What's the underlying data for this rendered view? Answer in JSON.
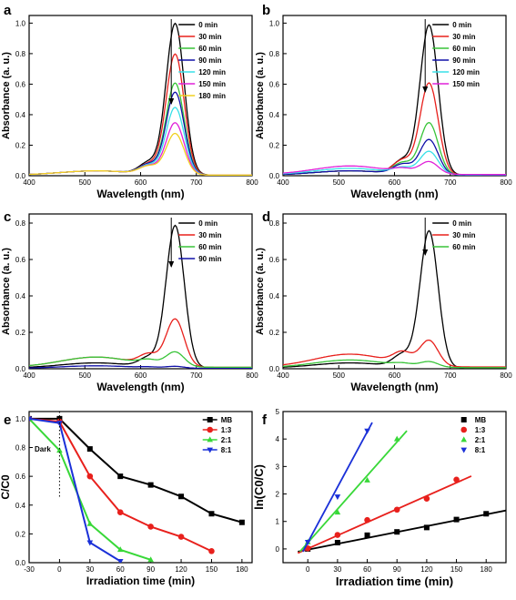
{
  "chart_data": [
    {
      "id": "a",
      "type": "line",
      "panel_label": "a",
      "xlabel": "Wavelength (nm)",
      "ylabel": "Absorbance (a. u.)",
      "xlim": [
        400,
        800
      ],
      "ylim": [
        0,
        1.05
      ],
      "xticks": [
        400,
        500,
        600,
        700,
        800
      ],
      "yticks": [
        0,
        0.2,
        0.4,
        0.6,
        0.8,
        1.0
      ],
      "ytick_labels": [
        "0.0",
        "0.2",
        "0.4",
        "0.6",
        "0.8",
        "1.0"
      ],
      "legend_position": "top-right",
      "arrow": "down",
      "series": [
        {
          "name": "0 min",
          "color": "#000000",
          "peak": 0.99,
          "shoulder": 0.62,
          "baseline": 0.02
        },
        {
          "name": "30 min",
          "color": "#e8201c",
          "peak": 0.79,
          "shoulder": 0.5,
          "baseline": 0.02
        },
        {
          "name": "60 min",
          "color": "#38c438",
          "peak": 0.6,
          "shoulder": 0.39,
          "baseline": 0.02
        },
        {
          "name": "90 min",
          "color": "#1010a8",
          "peak": 0.54,
          "shoulder": 0.36,
          "baseline": 0.02
        },
        {
          "name": "120 min",
          "color": "#38e0e8",
          "peak": 0.44,
          "shoulder": 0.3,
          "baseline": 0.02
        },
        {
          "name": "150 min",
          "color": "#e020d8",
          "peak": 0.34,
          "shoulder": 0.24,
          "baseline": 0.02
        },
        {
          "name": "180 min",
          "color": "#f0d020",
          "peak": 0.27,
          "shoulder": 0.2,
          "baseline": 0.02
        }
      ]
    },
    {
      "id": "b",
      "type": "line",
      "panel_label": "b",
      "xlabel": "Wavelength (nm)",
      "ylabel": "Absorbance (a. u.)",
      "xlim": [
        400,
        800
      ],
      "ylim": [
        0,
        1.05
      ],
      "xticks": [
        400,
        500,
        600,
        700,
        800
      ],
      "yticks": [
        0,
        0.2,
        0.4,
        0.6,
        0.8,
        1.0
      ],
      "ytick_labels": [
        "0.0",
        "0.2",
        "0.4",
        "0.6",
        "0.8",
        "1.0"
      ],
      "legend_position": "top-right",
      "arrow": "down",
      "series": [
        {
          "name": "0 min",
          "color": "#000000",
          "peak": 0.98,
          "shoulder": 0.63,
          "baseline": 0.02
        },
        {
          "name": "30 min",
          "color": "#e8201c",
          "peak": 0.6,
          "shoulder": 0.42,
          "baseline": 0.02
        },
        {
          "name": "60 min",
          "color": "#38c438",
          "peak": 0.34,
          "shoulder": 0.26,
          "baseline": 0.02
        },
        {
          "name": "90 min",
          "color": "#1010a8",
          "peak": 0.23,
          "shoulder": 0.19,
          "baseline": 0.02
        },
        {
          "name": "120 min",
          "color": "#38e0e8",
          "peak": 0.15,
          "shoulder": 0.12,
          "baseline": 0.03
        },
        {
          "name": "150 min",
          "color": "#e020d8",
          "peak": 0.08,
          "shoulder": 0.07,
          "baseline": 0.04
        }
      ]
    },
    {
      "id": "c",
      "type": "line",
      "panel_label": "c",
      "xlabel": "Wavelength (nm)",
      "ylabel": "Absorbance (a. u.)",
      "xlim": [
        400,
        800
      ],
      "ylim": [
        0,
        0.85
      ],
      "xticks": [
        400,
        500,
        600,
        700,
        800
      ],
      "yticks": [
        0,
        0.2,
        0.4,
        0.6,
        0.8
      ],
      "ytick_labels": [
        "0.0",
        "0.2",
        "0.4",
        "0.6",
        "0.8"
      ],
      "legend_position": "top-right",
      "arrow": "down",
      "series": [
        {
          "name": "0 min",
          "color": "#000000",
          "peak": 0.78,
          "shoulder": 0.48,
          "baseline": 0.02
        },
        {
          "name": "30 min",
          "color": "#e8201c",
          "peak": 0.26,
          "shoulder": 0.2,
          "baseline": 0.04
        },
        {
          "name": "60 min",
          "color": "#38c438",
          "peak": 0.08,
          "shoulder": 0.07,
          "baseline": 0.04
        },
        {
          "name": "90 min",
          "color": "#1010a8",
          "peak": 0.01,
          "shoulder": 0.01,
          "baseline": 0.01
        }
      ]
    },
    {
      "id": "d",
      "type": "line",
      "panel_label": "d",
      "xlabel": "Wavelength (nm)",
      "ylabel": "Absorbance (a. u.)",
      "xlim": [
        400,
        800
      ],
      "ylim": [
        0,
        0.85
      ],
      "xticks": [
        400,
        500,
        600,
        700,
        800
      ],
      "yticks": [
        0,
        0.2,
        0.4,
        0.6,
        0.8
      ],
      "ytick_labels": [
        "0.0",
        "0.2",
        "0.4",
        "0.6",
        "0.8"
      ],
      "legend_position": "top-right",
      "arrow": "down",
      "series": [
        {
          "name": "0 min",
          "color": "#000000",
          "peak": 0.75,
          "shoulder": 0.48,
          "baseline": 0.02
        },
        {
          "name": "30 min",
          "color": "#e8201c",
          "peak": 0.14,
          "shoulder": 0.14,
          "baseline": 0.05
        },
        {
          "name": "60 min",
          "color": "#38c438",
          "peak": 0.03,
          "shoulder": 0.03,
          "baseline": 0.03
        }
      ]
    },
    {
      "id": "e",
      "type": "line",
      "panel_label": "e",
      "xlabel": "Irradiation time (min)",
      "ylabel": "C/C0",
      "xlim": [
        -30,
        190
      ],
      "ylim": [
        0,
        1.05
      ],
      "xticks": [
        -30,
        0,
        30,
        60,
        90,
        120,
        150,
        180
      ],
      "yticks": [
        0,
        0.2,
        0.4,
        0.6,
        0.8,
        1.0
      ],
      "ytick_labels": [
        "0.0",
        "0.2",
        "0.4",
        "0.6",
        "0.8",
        "1.0"
      ],
      "legend_position": "top-right",
      "annotation": {
        "text": "Dark",
        "x_line": 0
      },
      "series": [
        {
          "name": "MB",
          "color": "#000000",
          "marker": "square",
          "x": [
            -30,
            0,
            30,
            60,
            90,
            120,
            150,
            180
          ],
          "y": [
            1.0,
            1.0,
            0.79,
            0.6,
            0.54,
            0.46,
            0.34,
            0.28
          ]
        },
        {
          "name": "1:3",
          "color": "#e8201c",
          "marker": "circle",
          "x": [
            -30,
            0,
            30,
            60,
            90,
            120,
            150
          ],
          "y": [
            1.0,
            0.98,
            0.6,
            0.35,
            0.25,
            0.18,
            0.08
          ]
        },
        {
          "name": "2:1",
          "color": "#38d838",
          "marker": "triangle-up",
          "x": [
            -30,
            0,
            30,
            60,
            90
          ],
          "y": [
            1.0,
            0.78,
            0.27,
            0.09,
            0.02
          ]
        },
        {
          "name": "8:1",
          "color": "#1a30d8",
          "marker": "triangle-down",
          "x": [
            -30,
            0,
            30,
            60
          ],
          "y": [
            1.0,
            0.97,
            0.14,
            0.01
          ]
        }
      ]
    },
    {
      "id": "f",
      "type": "scatter",
      "panel_label": "f",
      "xlabel": "Irradiation time (min)",
      "ylabel": "ln(C0/C)",
      "xlim": [
        -25,
        200
      ],
      "ylim": [
        -0.5,
        5
      ],
      "xticks": [
        0,
        30,
        60,
        90,
        120,
        150,
        180
      ],
      "yticks": [
        0,
        1,
        2,
        3,
        4,
        5
      ],
      "legend_position": "top-right",
      "series": [
        {
          "name": "MB",
          "color": "#000000",
          "marker": "square",
          "x": [
            0,
            30,
            60,
            90,
            120,
            150,
            180
          ],
          "y": [
            0.0,
            0.23,
            0.5,
            0.62,
            0.78,
            1.07,
            1.28
          ],
          "fit": [
            [
              -10,
              -0.1
            ],
            [
              200,
              1.4
            ]
          ]
        },
        {
          "name": "1:3",
          "color": "#e8201c",
          "marker": "circle",
          "x": [
            0,
            30,
            60,
            90,
            120,
            150
          ],
          "y": [
            0.02,
            0.51,
            1.05,
            1.43,
            1.83,
            2.52
          ],
          "fit": [
            [
              -10,
              -0.15
            ],
            [
              165,
              2.65
            ]
          ]
        },
        {
          "name": "2:1",
          "color": "#38d838",
          "marker": "triangle-up",
          "x": [
            0,
            30,
            60,
            90
          ],
          "y": [
            0.25,
            1.33,
            2.5,
            4.0
          ],
          "fit": [
            [
              -8,
              -0.1
            ],
            [
              100,
              4.3
            ]
          ]
        },
        {
          "name": "8:1",
          "color": "#1a30d8",
          "marker": "triangle-down",
          "x": [
            0,
            30,
            60
          ],
          "y": [
            0.25,
            1.9,
            4.3
          ],
          "fit": [
            [
              -5,
              -0.1
            ],
            [
              65,
              4.6
            ]
          ]
        }
      ]
    }
  ]
}
